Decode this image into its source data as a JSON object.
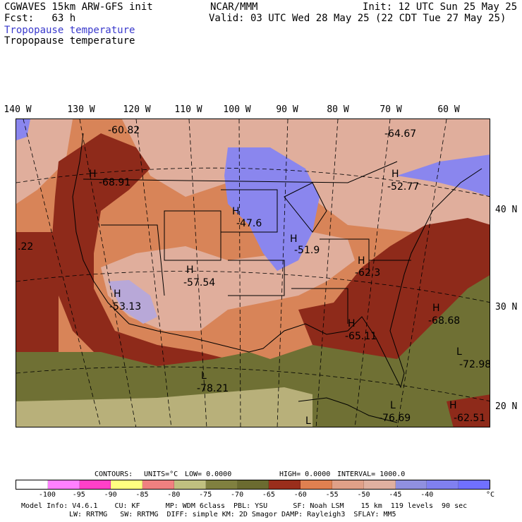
{
  "header": {
    "model": "CGWAVES 15km ARW-GFS init",
    "fcst": "Fcst:   63 h",
    "org": "NCAR/MMM",
    "init": "Init: 12 UTC Sun 25 May 25",
    "valid": "Valid: 03 UTC Wed 28 May 25 (22 CDT Tue 27 May 25)",
    "field_title_1": "Tropopause temperature",
    "field_title_2": "Tropopause temperature",
    "field_title_1_color": "#3a3acc"
  },
  "longitudes": [
    "140 W",
    "130 W",
    "120 W",
    "110 W",
    "100 W",
    "90 W",
    "80 W",
    "70 W",
    "60 W"
  ],
  "latitudes": [
    "40 N",
    "30 N",
    "20 N"
  ],
  "map_labels": [
    {
      "text": "-60.82"
    },
    {
      "text": "-64.67"
    },
    {
      "text": "H"
    },
    {
      "text": "-68.91"
    },
    {
      "text": "H"
    },
    {
      "text": "-52.77"
    },
    {
      "text": "H"
    },
    {
      "text": "-47.6"
    },
    {
      "text": ".22"
    },
    {
      "text": "H"
    },
    {
      "text": "-51.9"
    },
    {
      "text": "H"
    },
    {
      "text": "-57.54"
    },
    {
      "text": "H"
    },
    {
      "text": "-62.3"
    },
    {
      "text": "H"
    },
    {
      "text": "-53.13"
    },
    {
      "text": "H"
    },
    {
      "text": "-68.68"
    },
    {
      "text": "H"
    },
    {
      "text": "-65.11"
    },
    {
      "text": "L"
    },
    {
      "text": "-72.98"
    },
    {
      "text": "L"
    },
    {
      "text": "-78.21"
    },
    {
      "text": "L"
    },
    {
      "text": "-76.69"
    },
    {
      "text": "H"
    },
    {
      "text": "-62.51"
    },
    {
      "text": "L"
    }
  ],
  "contours": {
    "label": "CONTOURS:",
    "units": "UNITS=°C",
    "low": "LOW=  0.0000",
    "high": "HIGH=  0.0000",
    "interval": "INTERVAL=    1000.0"
  },
  "legend": {
    "colors": [
      "#ffffff",
      "#ff80ff",
      "#ff40c8",
      "#ffff80",
      "#f08080",
      "#c0c080",
      "#808040",
      "#6b6b30",
      "#9a2e1c",
      "#e08050",
      "#e0a088",
      "#e0b0a0",
      "#9090e0",
      "#8080f0",
      "#7070ff"
    ],
    "ticks": [
      "-100",
      "-95",
      "-90",
      "-85",
      "-80",
      "-75",
      "-70",
      "-65",
      "-60",
      "-55",
      "-50",
      "-45",
      "-40",
      "°C"
    ]
  },
  "footer": {
    "line1": "Model Info: V4.6.1    CU: KF      MP: WDM 6class  PBL: YSU      SF: Noah LSM    15 km  119 levels  90 sec",
    "line2": "LW: RRTMG   SW: RRTMG  DIFF: simple KM: 2D Smagor DAMP: Rayleigh3  SFLAY: MM5"
  }
}
